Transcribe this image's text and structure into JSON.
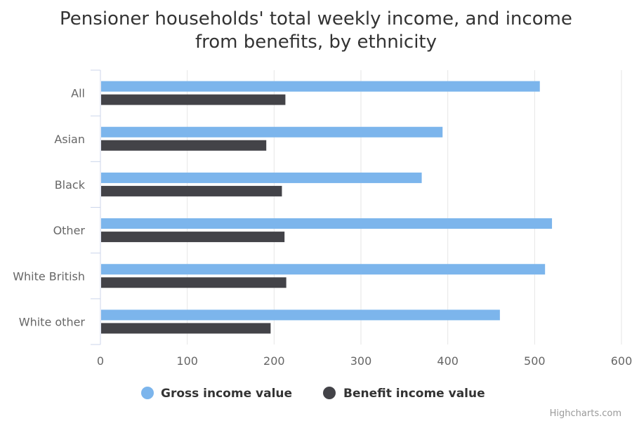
{
  "chart_data": {
    "type": "bar",
    "orientation": "horizontal",
    "title_line1": "Pensioner households' total weekly income, and income",
    "title_line2": "from benefits, by ethnicity",
    "categories": [
      "All",
      "Asian",
      "Black",
      "Other",
      "White British",
      "White other"
    ],
    "series": [
      {
        "name": "Gross income value",
        "color": "#7cb5ec",
        "values": [
          506,
          394,
          370,
          520,
          512,
          460
        ]
      },
      {
        "name": "Benefit income value",
        "color": "#434348",
        "values": [
          213,
          191,
          209,
          212,
          214,
          196
        ]
      }
    ],
    "xlim": [
      0,
      600
    ],
    "ticks": [
      0,
      100,
      200,
      300,
      400,
      500,
      600
    ],
    "grid": true,
    "legend_position": "bottom-center",
    "credits": "Highcharts.com"
  }
}
